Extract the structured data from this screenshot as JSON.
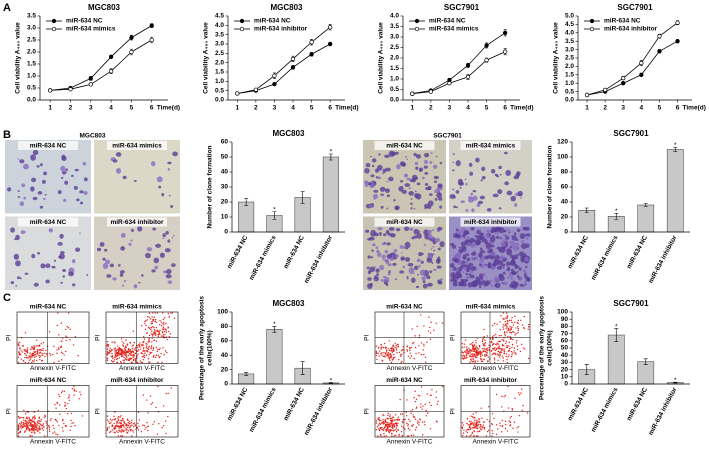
{
  "panel_letters": [
    "A",
    "B",
    "C"
  ],
  "flow_axes": {
    "x": "Annexin V-FITC",
    "y": "PI"
  },
  "images": [
    {
      "title": "MGC803",
      "kind": "colony",
      "labels": [
        "miR-634 NC",
        "miR-634 mimics",
        "miR-634 NC",
        "miR-634 inhibitor"
      ]
    },
    {
      "title": "SGC7901",
      "kind": "colony",
      "labels": [
        "miR-634 NC",
        "miR-634 mimics",
        "miR-634 NC",
        "miR-634 inhibitor"
      ]
    },
    {
      "kind": "flow",
      "labels": [
        "miR-634 NC",
        "miR-634 mimics",
        "miR-634 NC",
        "miR-634 inhibitor"
      ]
    },
    {
      "kind": "flow",
      "labels": [
        "miR-634 NC",
        "miR-634 mimics",
        "miR-634 NC",
        "miR-634 inhibitor"
      ]
    }
  ],
  "chart_data": [
    {
      "type": "line",
      "title": "MGC803",
      "xlabel": "Time(d)",
      "ylabel": "Cell viability A₄₉₀ value",
      "x": [
        1,
        2,
        3,
        4,
        5,
        6
      ],
      "xlim": [
        0.5,
        6.8
      ],
      "xticks": [
        1,
        2,
        3,
        4,
        5,
        6
      ],
      "ylim": [
        0,
        3.5
      ],
      "yticks": [
        {
          "value": 0,
          "label": "0.0"
        },
        0.5,
        {
          "value": 1,
          "label": "1.0"
        },
        1.5,
        {
          "value": 2,
          "label": "2.0"
        },
        2.5,
        {
          "value": 3,
          "label": "3.0"
        },
        3.5
      ],
      "legend": "upper left",
      "series": [
        {
          "name": "miR-634 NC",
          "color": "#000000",
          "marker": "filled",
          "values": [
            0.4,
            0.5,
            0.9,
            1.8,
            2.6,
            3.1
          ],
          "errors": [
            0.03,
            0.04,
            0.08,
            0.05,
            0.1,
            0.08
          ]
        },
        {
          "name": "miR-634 mimics",
          "color": "#000000",
          "marker": "open",
          "values": [
            0.4,
            0.45,
            0.65,
            1.2,
            2.0,
            2.5
          ],
          "errors": [
            0.03,
            0.04,
            0.06,
            0.1,
            0.12,
            0.12
          ]
        }
      ]
    },
    {
      "type": "line",
      "title": "MGC803",
      "xlabel": "Time(d)",
      "ylabel": "Cell viability A₄₉₀ value",
      "x": [
        1,
        2,
        3,
        4,
        5,
        6
      ],
      "xlim": [
        0.5,
        6.8
      ],
      "xticks": [
        1,
        2,
        3,
        4,
        5,
        6
      ],
      "ylim": [
        0,
        4.5
      ],
      "yticks": [
        {
          "value": 0,
          "label": "0.0"
        },
        0.5,
        {
          "value": 1,
          "label": "1.0"
        },
        1.5,
        {
          "value": 2,
          "label": "2.0"
        },
        2.5,
        {
          "value": 3,
          "label": "3.0"
        },
        3.5,
        {
          "value": 4,
          "label": "4.0"
        },
        4.5
      ],
      "legend": "upper left",
      "series": [
        {
          "name": "miR-634 NC",
          "color": "#000000",
          "marker": "filled",
          "values": [
            0.35,
            0.5,
            0.85,
            1.75,
            2.45,
            3.0
          ],
          "errors": [
            0.03,
            0.05,
            0.06,
            0.1,
            0.1,
            0.1
          ]
        },
        {
          "name": "miR-634 inhibitor",
          "color": "#000000",
          "marker": "open",
          "values": [
            0.35,
            0.55,
            1.3,
            2.2,
            3.1,
            3.9
          ],
          "errors": [
            0.03,
            0.05,
            0.15,
            0.15,
            0.15,
            0.15
          ]
        }
      ]
    },
    {
      "type": "line",
      "title": "SGC7901",
      "xlabel": "Time(d)",
      "ylabel": "Cell viability A₄₉₀ value",
      "x": [
        1,
        2,
        3,
        4,
        5,
        6
      ],
      "xlim": [
        0.5,
        6.8
      ],
      "xticks": [
        1,
        2,
        3,
        4,
        5,
        6
      ],
      "ylim": [
        0,
        4
      ],
      "yticks": [
        {
          "value": 0,
          "label": "0.0"
        },
        0.5,
        {
          "value": 1,
          "label": "1.0"
        },
        1.5,
        {
          "value": 2,
          "label": "2.0"
        },
        2.5,
        {
          "value": 3,
          "label": "3.0"
        },
        3.5,
        {
          "value": 4,
          "label": "4.0"
        }
      ],
      "legend": "upper left",
      "series": [
        {
          "name": "miR-634 NC",
          "color": "#000000",
          "marker": "filled",
          "values": [
            0.3,
            0.45,
            0.95,
            1.65,
            2.6,
            3.2
          ],
          "errors": [
            0.03,
            0.04,
            0.08,
            0.1,
            0.12,
            0.15
          ]
        },
        {
          "name": "miR-634 mimics",
          "color": "#000000",
          "marker": "open",
          "values": [
            0.3,
            0.4,
            0.8,
            1.1,
            1.9,
            2.3
          ],
          "errors": [
            0.03,
            0.04,
            0.06,
            0.12,
            0.1,
            0.15
          ]
        }
      ]
    },
    {
      "type": "line",
      "title": "SGC7901",
      "xlabel": "Time(d)",
      "ylabel": "Cell viability A₄₉₀ value",
      "x": [
        1,
        2,
        3,
        4,
        5,
        6
      ],
      "xlim": [
        0.5,
        6.8
      ],
      "xticks": [
        1,
        2,
        3,
        4,
        5,
        6
      ],
      "ylim": [
        0,
        5
      ],
      "yticks": [
        {
          "value": 0,
          "label": "0.0"
        },
        0.5,
        {
          "value": 1,
          "label": "1.0"
        },
        1.5,
        {
          "value": 2,
          "label": "2.0"
        },
        2.5,
        {
          "value": 3,
          "label": "3.0"
        },
        3.5,
        {
          "value": 4,
          "label": "4.0"
        },
        4.5,
        {
          "value": 5,
          "label": "5.0"
        }
      ],
      "legend": "upper left",
      "series": [
        {
          "name": "miR-634 NC",
          "color": "#000000",
          "marker": "filled",
          "values": [
            0.3,
            0.5,
            1.0,
            1.5,
            2.9,
            3.5
          ],
          "errors": [
            0.03,
            0.04,
            0.06,
            0.08,
            0.1,
            0.1
          ]
        },
        {
          "name": "miR-634 inhibitor",
          "color": "#000000",
          "marker": "open",
          "values": [
            0.3,
            0.6,
            1.3,
            2.2,
            3.8,
            4.6
          ],
          "errors": [
            0.03,
            0.05,
            0.1,
            0.15,
            0.12,
            0.12
          ]
        }
      ]
    },
    {
      "type": "bar",
      "title": "MGC803",
      "ylabel": [
        "Number of clone formation"
      ],
      "categories": [
        "miR-634 NC",
        "miR-634 mimics",
        "miR-634 NC",
        "miR-634 inhibitor"
      ],
      "values": [
        20,
        11,
        23,
        50
      ],
      "errors": [
        2.5,
        2.5,
        4,
        2
      ],
      "color": "#c8c8c8",
      "ylim": [
        0,
        60
      ],
      "yticks": [
        0,
        10,
        20,
        30,
        40,
        50,
        60
      ],
      "annotations": [
        {
          "index": 1,
          "text": "*"
        },
        {
          "index": 3,
          "text": "*"
        }
      ]
    },
    {
      "type": "bar",
      "title": "SGC7901",
      "ylabel": [
        "Number of clone formation"
      ],
      "categories": [
        "miR-634 NC",
        "miR-634 mimics",
        "miR-634 NC",
        "miR-634 inhibitor"
      ],
      "values": [
        29,
        21,
        36,
        110
      ],
      "errors": [
        3,
        4,
        2,
        3
      ],
      "color": "#c8c8c8",
      "ylim": [
        0,
        120
      ],
      "yticks": [
        0,
        20,
        40,
        60,
        80,
        100,
        120
      ],
      "annotations": [
        {
          "index": 1,
          "text": "*"
        },
        {
          "index": 3,
          "text": "*"
        }
      ]
    },
    {
      "type": "bar",
      "title": "MGC803",
      "ylabel": [
        "Percentage of the early apoptosis",
        "cells(100%)"
      ],
      "categories": [
        "miR-634 NC",
        "miR-634 mimics",
        "miR-634 NC",
        "miR-634 inhibitor"
      ],
      "values": [
        14,
        76,
        22,
        1.5
      ],
      "errors": [
        2,
        4,
        9,
        0.5
      ],
      "color": "#c8c8c8",
      "ylim": [
        0,
        100
      ],
      "yticks": [
        0,
        20,
        40,
        60,
        80,
        100
      ],
      "annotations": [
        {
          "index": 1,
          "text": "*"
        },
        {
          "index": 3,
          "text": "*"
        }
      ]
    },
    {
      "type": "bar",
      "title": "SGC7901",
      "ylabel": [
        "Percentage of the early apoptosis",
        "cells(100%)"
      ],
      "categories": [
        "miR-634 NC",
        "miR-634 mimics",
        "miR-634 NC",
        "miR-634 inhibitor"
      ],
      "values": [
        20,
        68,
        31,
        2
      ],
      "errors": [
        7,
        9,
        4,
        0.5
      ],
      "color": "#c8c8c8",
      "ylim": [
        0,
        100
      ],
      "yticks": [
        0,
        10,
        20,
        30,
        40,
        50,
        60,
        70,
        80,
        90,
        100
      ],
      "annotations": [
        {
          "index": 1,
          "text": "*"
        },
        {
          "index": 3,
          "text": "*"
        }
      ]
    }
  ]
}
